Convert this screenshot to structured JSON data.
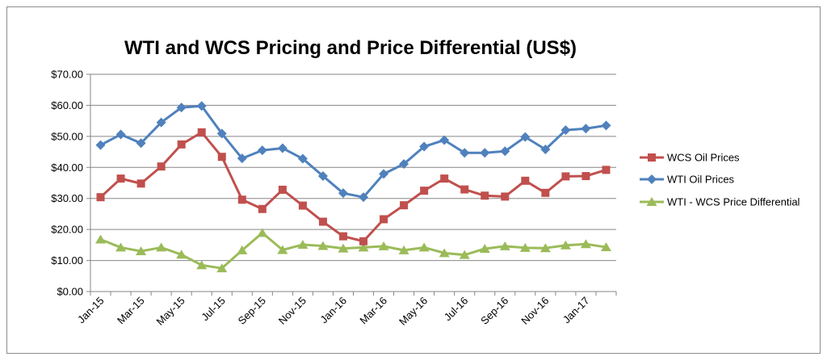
{
  "chart_data": {
    "type": "line",
    "title": "WTI and WCS Pricing and Price Differential (US$)",
    "xlabel": "",
    "ylabel": "",
    "ylim": [
      0,
      70
    ],
    "y_ticks": [
      "$0.00",
      "$10.00",
      "$20.00",
      "$30.00",
      "$40.00",
      "$50.00",
      "$60.00",
      "$70.00"
    ],
    "x_tick_labels": [
      "Jan-15",
      "Mar-15",
      "May-15",
      "Jul-15",
      "Sep-15",
      "Nov-15",
      "Jan-16",
      "Mar-16",
      "May-16",
      "Jul-16",
      "Sep-16",
      "Nov-16",
      "Jan-17"
    ],
    "categories": [
      "Jan-15",
      "Feb-15",
      "Mar-15",
      "Apr-15",
      "May-15",
      "Jun-15",
      "Jul-15",
      "Aug-15",
      "Sep-15",
      "Oct-15",
      "Nov-15",
      "Dec-15",
      "Jan-16",
      "Feb-16",
      "Mar-16",
      "Apr-16",
      "May-16",
      "Jun-16",
      "Jul-16",
      "Aug-16",
      "Sep-16",
      "Oct-16",
      "Nov-16",
      "Dec-16",
      "Jan-17",
      "Feb-17"
    ],
    "grid": true,
    "legend_position": "right",
    "series": [
      {
        "name": "WCS Oil Prices",
        "color": "#c0504d",
        "marker": "square",
        "values": [
          30.4,
          36.4,
          34.8,
          40.3,
          47.4,
          51.3,
          43.4,
          29.6,
          26.6,
          32.8,
          27.7,
          22.5,
          17.8,
          16.2,
          23.3,
          27.8,
          32.5,
          36.4,
          32.9,
          30.9,
          30.6,
          35.7,
          31.8,
          37.1,
          37.2,
          39.2
        ]
      },
      {
        "name": "WTI Oil Prices",
        "color": "#4f81bd",
        "marker": "diamond",
        "values": [
          47.2,
          50.6,
          47.8,
          54.5,
          59.3,
          59.8,
          50.9,
          42.9,
          45.5,
          46.2,
          42.8,
          37.2,
          31.7,
          30.4,
          37.9,
          41.1,
          46.7,
          48.8,
          44.7,
          44.7,
          45.2,
          49.8,
          45.8,
          52.0,
          52.5,
          53.5
        ]
      },
      {
        "name": "WTI - WCS Price Differential",
        "color": "#9bbb59",
        "marker": "triangle",
        "values": [
          16.8,
          14.2,
          13.0,
          14.2,
          11.9,
          8.5,
          7.5,
          13.3,
          18.9,
          13.4,
          15.1,
          14.7,
          13.9,
          14.2,
          14.6,
          13.3,
          14.2,
          12.4,
          11.8,
          13.8,
          14.6,
          14.1,
          14.0,
          14.9,
          15.3,
          14.3
        ]
      }
    ]
  }
}
